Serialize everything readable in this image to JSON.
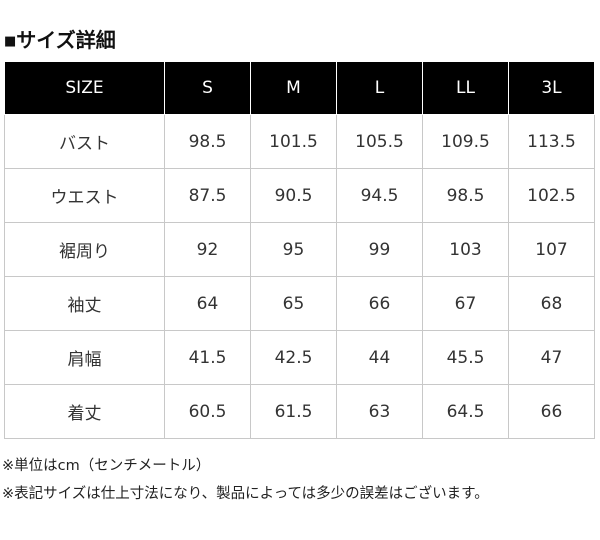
{
  "title": {
    "mark": "■",
    "text": "サイズ詳細"
  },
  "table": {
    "headers": [
      "SIZE",
      "S",
      "M",
      "L",
      "LL",
      "3L"
    ],
    "rows": [
      {
        "label": "バスト",
        "values": [
          "98.5",
          "101.5",
          "105.5",
          "109.5",
          "113.5"
        ]
      },
      {
        "label": "ウエスト",
        "values": [
          "87.5",
          "90.5",
          "94.5",
          "98.5",
          "102.5"
        ]
      },
      {
        "label": "裾周り",
        "values": [
          "92",
          "95",
          "99",
          "103",
          "107"
        ]
      },
      {
        "label": "袖丈",
        "values": [
          "64",
          "65",
          "66",
          "67",
          "68"
        ]
      },
      {
        "label": "肩幅",
        "values": [
          "41.5",
          "42.5",
          "44",
          "45.5",
          "47"
        ]
      },
      {
        "label": "着丈",
        "values": [
          "60.5",
          "61.5",
          "63",
          "64.5",
          "66"
        ]
      }
    ]
  },
  "notes": [
    "※単位はcm（センチメートル）",
    "※表記サイズは仕上寸法になり、製品によっては多少の誤差はございます。"
  ]
}
